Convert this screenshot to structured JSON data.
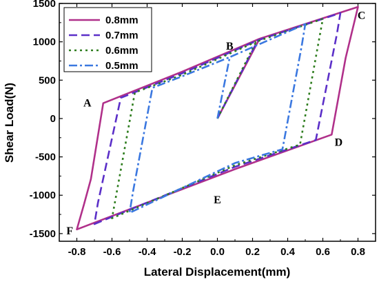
{
  "chart_data": {
    "type": "line",
    "xlabel": "Lateral Displacement(mm)",
    "ylabel": "Shear Load(N)",
    "xlim": [
      -0.9,
      0.9
    ],
    "ylim": [
      -1600,
      1500
    ],
    "xticks": [
      -0.8,
      -0.6,
      -0.4,
      -0.2,
      0.0,
      0.2,
      0.4,
      0.6,
      0.8
    ],
    "xtick_labels": [
      "-0.8",
      "-0.6",
      "-0.4",
      "-0.2",
      "0.0",
      "0.2",
      "0.4",
      "0.6",
      "0.8"
    ],
    "yticks": [
      -1500,
      -1000,
      -500,
      0,
      500,
      1000,
      1500
    ],
    "ytick_labels": [
      "-1500",
      "-1000",
      "-500",
      "0",
      "500",
      "1000",
      "1500"
    ],
    "grid": false,
    "legend_position": "top-left",
    "series": [
      {
        "name": "0.8mm",
        "color": "#b0308a",
        "dash": "solid",
        "points": [
          [
            0,
            0
          ],
          [
            0.24,
            1040
          ],
          [
            0.8,
            1455
          ],
          [
            0.73,
            790
          ],
          [
            0.65,
            -210
          ],
          [
            0.1,
            -660
          ],
          [
            -0.8,
            -1445
          ],
          [
            -0.76,
            -1125
          ],
          [
            -0.72,
            -790
          ],
          [
            -0.65,
            200
          ],
          [
            -0.2,
            610
          ],
          [
            0.24,
            1040
          ]
        ]
      },
      {
        "name": "0.7mm",
        "color": "#5b2fc8",
        "dash": "dash",
        "points": [
          [
            0,
            0
          ],
          [
            0.23,
            1020
          ],
          [
            0.7,
            1375
          ],
          [
            0.68,
            1100
          ],
          [
            0.56,
            -280
          ],
          [
            0.1,
            -630
          ],
          [
            -0.7,
            -1375
          ],
          [
            -0.68,
            -1100
          ],
          [
            -0.55,
            270
          ],
          [
            -0.2,
            590
          ],
          [
            0.23,
            1020
          ]
        ]
      },
      {
        "name": "0.6mm",
        "color": "#2e7d1e",
        "dash": "dot",
        "points": [
          [
            0,
            0
          ],
          [
            0.22,
            1000
          ],
          [
            0.6,
            1300
          ],
          [
            0.58,
            1050
          ],
          [
            0.47,
            -340
          ],
          [
            0.1,
            -610
          ],
          [
            -0.6,
            -1300
          ],
          [
            -0.58,
            -1050
          ],
          [
            -0.47,
            340
          ],
          [
            -0.2,
            570
          ],
          [
            0.22,
            1000
          ]
        ]
      },
      {
        "name": "0.5mm",
        "color": "#3b78e0",
        "dash": "dashdot",
        "points": [
          [
            0,
            0
          ],
          [
            0.07,
            800
          ],
          [
            0.5,
            1230
          ],
          [
            0.48,
            950
          ],
          [
            0.37,
            -400
          ],
          [
            0.1,
            -580
          ],
          [
            -0.5,
            -1230
          ],
          [
            -0.48,
            -950
          ],
          [
            -0.37,
            400
          ],
          [
            -0.2,
            550
          ],
          [
            0.07,
            800
          ]
        ]
      }
    ],
    "annotations": [
      {
        "text": "A",
        "x": -0.74,
        "y": 210
      },
      {
        "text": "B",
        "x": 0.07,
        "y": 950
      },
      {
        "text": "C",
        "x": 0.82,
        "y": 1350
      },
      {
        "text": "D",
        "x": 0.69,
        "y": -300
      },
      {
        "text": "E",
        "x": 0.0,
        "y": -1050
      },
      {
        "text": "F",
        "x": -0.84,
        "y": -1455
      }
    ]
  }
}
